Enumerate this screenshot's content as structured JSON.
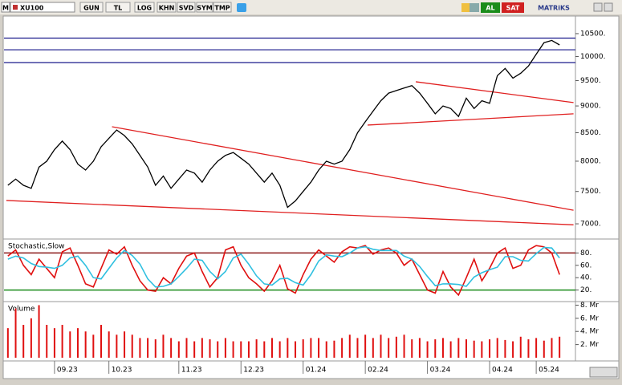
{
  "toolbar": {
    "symbol_prefix": "M",
    "symbol": "XU100",
    "buttons": [
      "GUN",
      "TL",
      "LOG",
      "KHN",
      "SVD",
      "SYM",
      "TMP"
    ],
    "buy": "AL",
    "sell": "SAT",
    "brand": "MATRiKS"
  },
  "chart_data": [
    {
      "type": "line",
      "log_scale": true,
      "ylim": [
        6800,
        10680
      ],
      "yticks": [
        {
          "value": 10500,
          "label": "10500."
        },
        {
          "value": 10000,
          "label": "10000."
        },
        {
          "value": 9500,
          "label": "9500."
        },
        {
          "value": 9000,
          "label": "9000."
        },
        {
          "value": 8500,
          "label": "8500."
        },
        {
          "value": 8000,
          "label": "8000."
        },
        {
          "value": 7500,
          "label": "7500."
        },
        {
          "value": 7000,
          "label": "7000."
        }
      ],
      "categories": [
        null,
        null,
        null,
        null,
        null,
        null,
        "09.23",
        null,
        null,
        null,
        null,
        null,
        null,
        "10.23",
        null,
        null,
        null,
        null,
        null,
        null,
        null,
        null,
        "11.23",
        null,
        null,
        null,
        null,
        null,
        null,
        null,
        "12.23",
        null,
        null,
        null,
        null,
        null,
        null,
        null,
        "01.24",
        null,
        null,
        null,
        null,
        null,
        null,
        null,
        "02.24",
        null,
        null,
        null,
        null,
        null,
        null,
        null,
        "03.24",
        null,
        null,
        null,
        null,
        null,
        null,
        null,
        "04.24",
        null,
        null,
        null,
        null,
        null,
        "05.24",
        null,
        null,
        null
      ],
      "series": [
        {
          "color": "#000000",
          "values": [
            7600,
            7700,
            7600,
            7550,
            7900,
            8000,
            8200,
            8350,
            8200,
            7950,
            7850,
            8000,
            8250,
            8400,
            8550,
            8450,
            8300,
            8100,
            7900,
            7600,
            7750,
            7550,
            7700,
            7850,
            7800,
            7650,
            7850,
            8000,
            8100,
            8150,
            8050,
            7950,
            7800,
            7650,
            7800,
            7600,
            7250,
            7350,
            7500,
            7650,
            7850,
            8000,
            7950,
            8000,
            8200,
            8500,
            8700,
            8900,
            9100,
            9250,
            9300,
            9350,
            9400,
            9250,
            9050,
            8850,
            9000,
            8950,
            8800,
            9150,
            8950,
            9100,
            9050,
            9600,
            9750,
            9550,
            9650,
            9800,
            10050,
            10300,
            10350,
            10250
          ]
        }
      ],
      "hlines": {
        "color": "#1a1a8c",
        "values": [
          10400,
          10145,
          9872
        ]
      },
      "trendlines": {
        "color": "#e02020",
        "lines": [
          {
            "x": [
              13.4,
              72.8
            ],
            "y": [
              8610,
              7206
            ]
          },
          {
            "x": [
              -0.2,
              72.8
            ],
            "y": [
              7357,
              6985
            ]
          },
          {
            "x": [
              52.5,
              72.8
            ],
            "y": [
              9476,
              9065
            ]
          },
          {
            "x": [
              46.3,
              72.8
            ],
            "y": [
              8640,
              8850
            ]
          }
        ]
      }
    },
    {
      "type": "line",
      "title": "Stochastic,Slow",
      "ylim": [
        0,
        100
      ],
      "yticks": [
        {
          "value": 80,
          "label": "80."
        },
        {
          "value": 60,
          "label": "60."
        },
        {
          "value": 40,
          "label": "40."
        },
        {
          "value": 20,
          "label": "20."
        }
      ],
      "levels": [
        {
          "value": 80,
          "color": "#8b1a1a"
        },
        {
          "value": 20,
          "color": "#1a8c1a"
        }
      ],
      "series": [
        {
          "color": "#e01010",
          "values": [
            75,
            85,
            60,
            45,
            70,
            55,
            40,
            82,
            88,
            60,
            30,
            25,
            55,
            85,
            78,
            90,
            60,
            35,
            20,
            18,
            40,
            30,
            55,
            75,
            80,
            50,
            25,
            40,
            85,
            90,
            60,
            40,
            30,
            18,
            35,
            60,
            22,
            15,
            45,
            70,
            85,
            75,
            65,
            82,
            90,
            88,
            92,
            78,
            85,
            88,
            80,
            60,
            70,
            45,
            20,
            15,
            50,
            25,
            12,
            40,
            70,
            35,
            55,
            80,
            88,
            55,
            60,
            85,
            92,
            90,
            80,
            45
          ]
        },
        {
          "color": "#30c0e0",
          "values": [
            70,
            75,
            72,
            63,
            58,
            57,
            55,
            60,
            72,
            75,
            60,
            40,
            38,
            55,
            72,
            84,
            76,
            62,
            38,
            25,
            26,
            30,
            42,
            55,
            70,
            68,
            50,
            38,
            50,
            72,
            78,
            62,
            43,
            30,
            28,
            38,
            39,
            32,
            28,
            45,
            67,
            77,
            75,
            74,
            80,
            88,
            90,
            86,
            84,
            84,
            84,
            75,
            70,
            58,
            42,
            27,
            30,
            30,
            29,
            26,
            41,
            48,
            53,
            57,
            74,
            74,
            68,
            67,
            79,
            89,
            88,
            72
          ]
        }
      ]
    },
    {
      "type": "bar",
      "title": "Volume",
      "ylim": [
        0,
        8.3
      ],
      "color": "#e01010",
      "yticks": [
        {
          "value": 8,
          "label": "8. Mr"
        },
        {
          "value": 6,
          "label": "6. Mr"
        },
        {
          "value": 4,
          "label": "4. Mr"
        },
        {
          "value": 2,
          "label": "2. Mr"
        }
      ],
      "values": [
        4.5,
        7.5,
        5,
        6,
        8,
        5,
        4.5,
        5,
        4,
        4.5,
        4,
        3.5,
        5,
        4,
        3.5,
        4,
        3.5,
        3,
        3,
        2.8,
        3.5,
        3,
        2.5,
        3,
        2.5,
        3,
        2.8,
        2.5,
        3,
        2.5,
        2.5,
        2.5,
        2.8,
        2.5,
        3,
        2.5,
        3,
        2.5,
        2.8,
        3,
        3,
        2.5,
        2.6,
        3,
        3.5,
        3,
        3.5,
        3,
        3.5,
        3,
        3.2,
        3.5,
        2.8,
        3,
        2.5,
        2.8,
        3,
        2.5,
        3,
        2.8,
        2.6,
        2.5,
        2.8,
        3,
        2.7,
        2.5,
        3.2,
        2.8,
        3,
        2.6,
        3,
        3.2
      ]
    }
  ]
}
